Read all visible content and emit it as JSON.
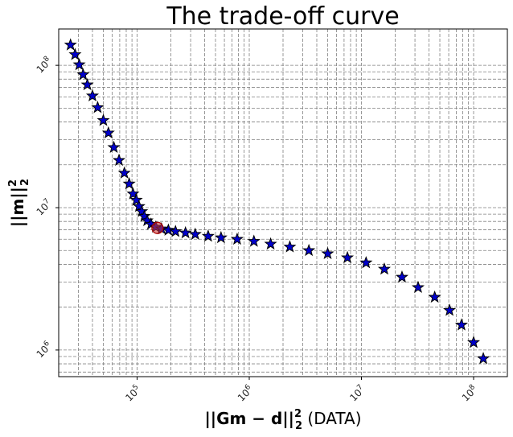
{
  "chart_data": {
    "type": "scatter",
    "title": "The trade-off curve",
    "xlabel": {
      "math": "||Gm − d||",
      "exp": "2",
      "sub": "2",
      "suffix": " (DATA)"
    },
    "ylabel": {
      "math": "||m||",
      "exp": "2",
      "sub": "2"
    },
    "xscale": "log",
    "yscale": "log",
    "xlim": [
      20000,
      200000000
    ],
    "ylim": [
      650000,
      180000000
    ],
    "grid": "major and minor, dashed gray",
    "x_ticks": [
      {
        "v": 100000,
        "base": "10",
        "exp": "5"
      },
      {
        "v": 1000000,
        "base": "10",
        "exp": "6"
      },
      {
        "v": 10000000,
        "base": "10",
        "exp": "7"
      },
      {
        "v": 100000000,
        "base": "10",
        "exp": "8"
      }
    ],
    "y_ticks": [
      {
        "v": 1000000,
        "base": "10",
        "exp": "6"
      },
      {
        "v": 10000000,
        "base": "10",
        "exp": "7"
      },
      {
        "v": 100000000,
        "base": "10",
        "exp": "8"
      }
    ],
    "series": [
      {
        "marker": "star",
        "color": "#0000cc",
        "edge": "#000000",
        "points": [
          [
            25500,
            139000000
          ],
          [
            28000,
            119000000
          ],
          [
            30500,
            101000000
          ],
          [
            33000,
            86000000
          ],
          [
            36000,
            73000000
          ],
          [
            40000,
            61000000
          ],
          [
            44500,
            50500000
          ],
          [
            50000,
            41000000
          ],
          [
            55500,
            33500000
          ],
          [
            62000,
            26500000
          ],
          [
            69000,
            21500000
          ],
          [
            77000,
            17500000
          ],
          [
            85000,
            14700000
          ],
          [
            92000,
            12500000
          ],
          [
            98500,
            11300000
          ],
          [
            104000,
            10200000
          ],
          [
            110000,
            9400000
          ],
          [
            116000,
            8700000
          ],
          [
            123000,
            8100000
          ],
          [
            133000,
            7650000
          ],
          [
            147000,
            7300000
          ],
          [
            165000,
            7100000
          ],
          [
            190000,
            6950000
          ],
          [
            220000,
            6800000
          ],
          [
            270000,
            6650000
          ],
          [
            330000,
            6500000
          ],
          [
            430000,
            6300000
          ],
          [
            560000,
            6150000
          ],
          [
            780000,
            6000000
          ],
          [
            1100000,
            5800000
          ],
          [
            1550000,
            5550000
          ],
          [
            2300000,
            5300000
          ],
          [
            3400000,
            5000000
          ],
          [
            5000000,
            4750000
          ],
          [
            7500000,
            4450000
          ],
          [
            11000000,
            4100000
          ],
          [
            16000000,
            3700000
          ],
          [
            23000000,
            3250000
          ],
          [
            32000000,
            2750000
          ],
          [
            45000000,
            2350000
          ],
          [
            61000000,
            1900000
          ],
          [
            78000000,
            1500000
          ],
          [
            100000000,
            1130000
          ],
          [
            122000000,
            870000
          ]
        ]
      },
      {
        "marker": "circle",
        "color": "#cc3333",
        "highlight": true,
        "points": [
          [
            152000,
            7200000
          ]
        ]
      }
    ]
  }
}
